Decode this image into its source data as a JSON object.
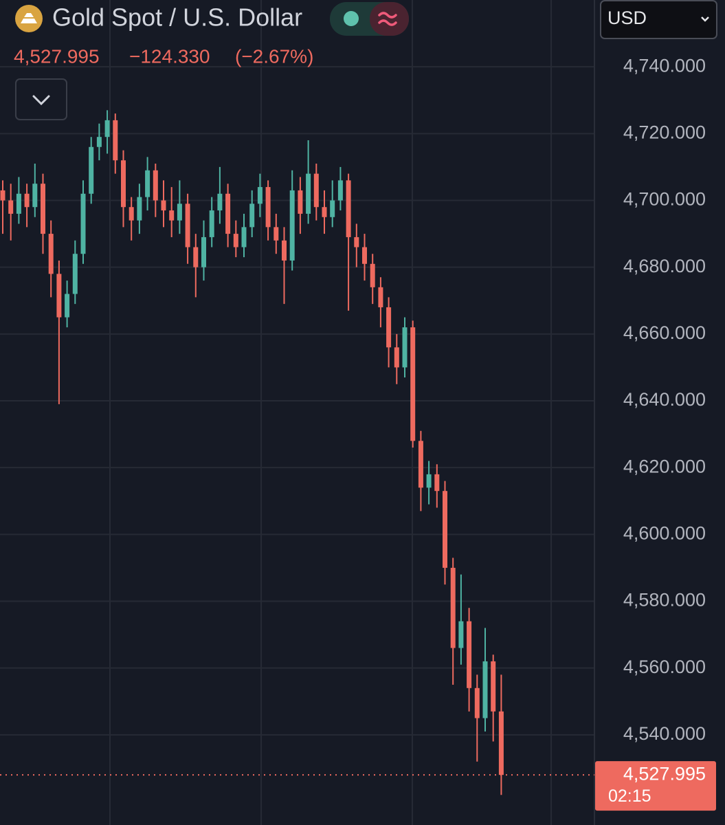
{
  "header": {
    "title": "Gold Spot / U.S. Dollar",
    "price": "4,527.995",
    "change": "−124.330",
    "change_pct": "(−2.67%)",
    "currency": "USD"
  },
  "chart_data": {
    "type": "candlestick",
    "up_color": "#4fb3a3",
    "down_color": "#ee6a5f",
    "open": [
      4703,
      4700,
      4696,
      4702,
      4698,
      4705,
      4690,
      4678,
      4665,
      4672,
      4684,
      4702,
      4716,
      4719,
      4724,
      4712,
      4698,
      4694,
      4701,
      4709,
      4700,
      4697,
      4694,
      4699,
      4686,
      4680,
      4689,
      4697,
      4702,
      4690,
      4686,
      4692,
      4699,
      4704,
      4692,
      4688,
      4682,
      4703,
      4696,
      4708,
      4698,
      4695,
      4700,
      4706,
      4689,
      4686,
      4681,
      4674,
      4668,
      4656,
      4650,
      4662,
      4628,
      4614,
      4618,
      4613,
      4590,
      4566,
      4574,
      4554,
      4545,
      4562,
      4547
    ],
    "high": [
      4706,
      4705,
      4707,
      4705,
      4711,
      4708,
      4694,
      4682,
      4676,
      4688,
      4706,
      4719,
      4723,
      4727,
      4726,
      4715,
      4701,
      4705,
      4713,
      4711,
      4706,
      4704,
      4706,
      4702,
      4690,
      4694,
      4701,
      4710,
      4705,
      4694,
      4696,
      4703,
      4708,
      4706,
      4696,
      4692,
      4709,
      4707,
      4718,
      4711,
      4703,
      4706,
      4710,
      4708,
      4693,
      4690,
      4684,
      4677,
      4671,
      4660,
      4665,
      4664,
      4631,
      4622,
      4621,
      4616,
      4593,
      4588,
      4578,
      4558,
      4572,
      4564,
      4558
    ],
    "low": [
      4690,
      4688,
      4693,
      4692,
      4695,
      4684,
      4671,
      4639,
      4662,
      4669,
      4681,
      4699,
      4712,
      4714,
      4708,
      4692,
      4688,
      4690,
      4697,
      4695,
      4692,
      4689,
      4690,
      4681,
      4671,
      4676,
      4686,
      4693,
      4686,
      4683,
      4683,
      4689,
      4695,
      4688,
      4684,
      4669,
      4679,
      4690,
      4693,
      4694,
      4690,
      4692,
      4697,
      4667,
      4680,
      4676,
      4669,
      4662,
      4650,
      4645,
      4647,
      4626,
      4607,
      4609,
      4608,
      4585,
      4555,
      4561,
      4547,
      4532,
      4541,
      4538,
      4522
    ],
    "close": [
      4700,
      4696,
      4702,
      4698,
      4705,
      4690,
      4678,
      4665,
      4672,
      4684,
      4702,
      4716,
      4719,
      4724,
      4712,
      4698,
      4694,
      4701,
      4709,
      4700,
      4697,
      4694,
      4699,
      4686,
      4680,
      4689,
      4697,
      4702,
      4690,
      4686,
      4692,
      4699,
      4704,
      4692,
      4688,
      4682,
      4703,
      4696,
      4708,
      4698,
      4695,
      4700,
      4706,
      4689,
      4686,
      4681,
      4674,
      4668,
      4656,
      4650,
      4662,
      4628,
      4614,
      4618,
      4613,
      4590,
      4566,
      4574,
      4554,
      4545,
      4562,
      4547,
      4527.995
    ],
    "ylim": [
      4513,
      4760
    ],
    "yticks": [
      {
        "value": 4540,
        "label": "4,540.000"
      },
      {
        "value": 4560,
        "label": "4,560.000"
      },
      {
        "value": 4580,
        "label": "4,580.000"
      },
      {
        "value": 4600,
        "label": "4,600.000"
      },
      {
        "value": 4620,
        "label": "4,620.000"
      },
      {
        "value": 4640,
        "label": "4,640.000"
      },
      {
        "value": 4660,
        "label": "4,660.000"
      },
      {
        "value": 4680,
        "label": "4,680.000"
      },
      {
        "value": 4700,
        "label": "4,700.000"
      },
      {
        "value": 4720,
        "label": "4,720.000"
      },
      {
        "value": 4740,
        "label": "4,740.000"
      }
    ],
    "grid": true,
    "last_price": {
      "value": 4527.995,
      "label": "4,527.995"
    },
    "countdown": "02:15"
  }
}
